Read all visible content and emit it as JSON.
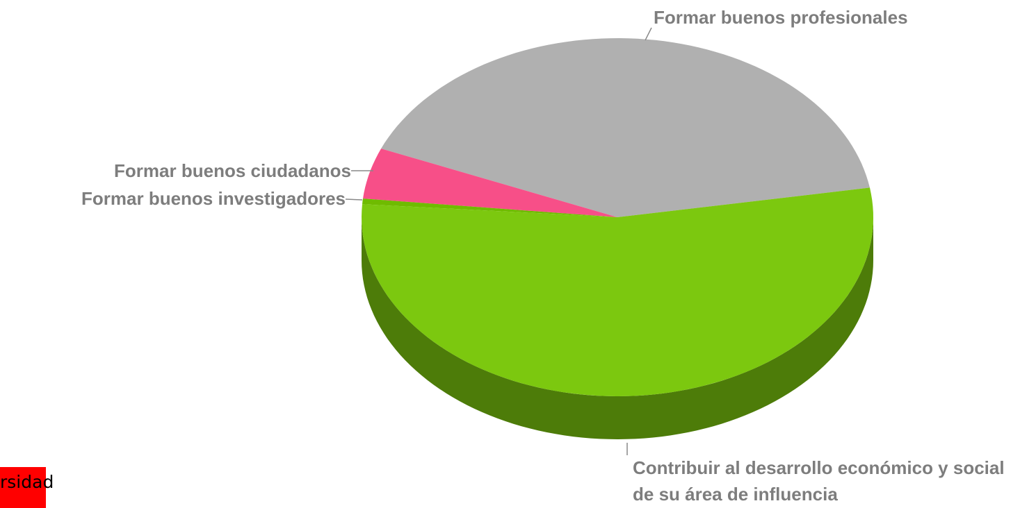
{
  "chart_data": {
    "type": "pie3d",
    "categories": [
      "Formar buenos profesionales",
      "Formar buenos ciudadanos",
      "Formar buenos investigadores",
      "Contribuir al desarrollo económico y social de su área de influencia"
    ],
    "values": [
      41.1,
      4.6,
      0.5,
      53.8
    ],
    "colors": [
      "#b0b0b0",
      "#f74f88",
      "#6fbb00",
      "#7cc80f"
    ]
  },
  "logo_text": "rsidad"
}
